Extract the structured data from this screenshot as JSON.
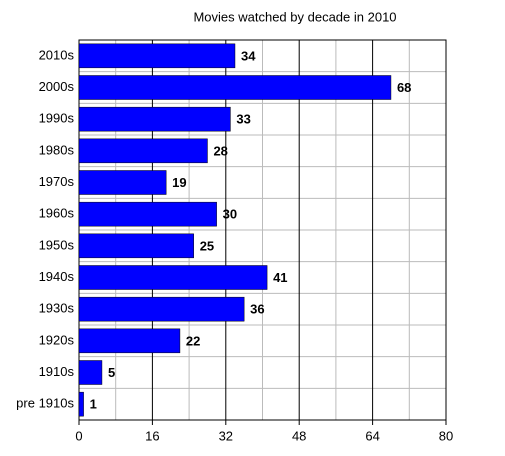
{
  "chart_data": {
    "type": "hbar",
    "title": "Movies watched by decade in 2010",
    "categories": [
      "2010s",
      "2000s",
      "1990s",
      "1980s",
      "1970s",
      "1960s",
      "1950s",
      "1940s",
      "1930s",
      "1920s",
      "1910s",
      "pre 1910s"
    ],
    "values": [
      34,
      68,
      33,
      28,
      19,
      30,
      25,
      41,
      36,
      22,
      5,
      1
    ],
    "color": "#0000ff",
    "xlim": [
      0,
      80
    ],
    "xticks": [
      0,
      16,
      32,
      48,
      64,
      80
    ],
    "minor_xticks": [
      8,
      24,
      40,
      56,
      72
    ],
    "grid": true,
    "data_labels": true
  }
}
